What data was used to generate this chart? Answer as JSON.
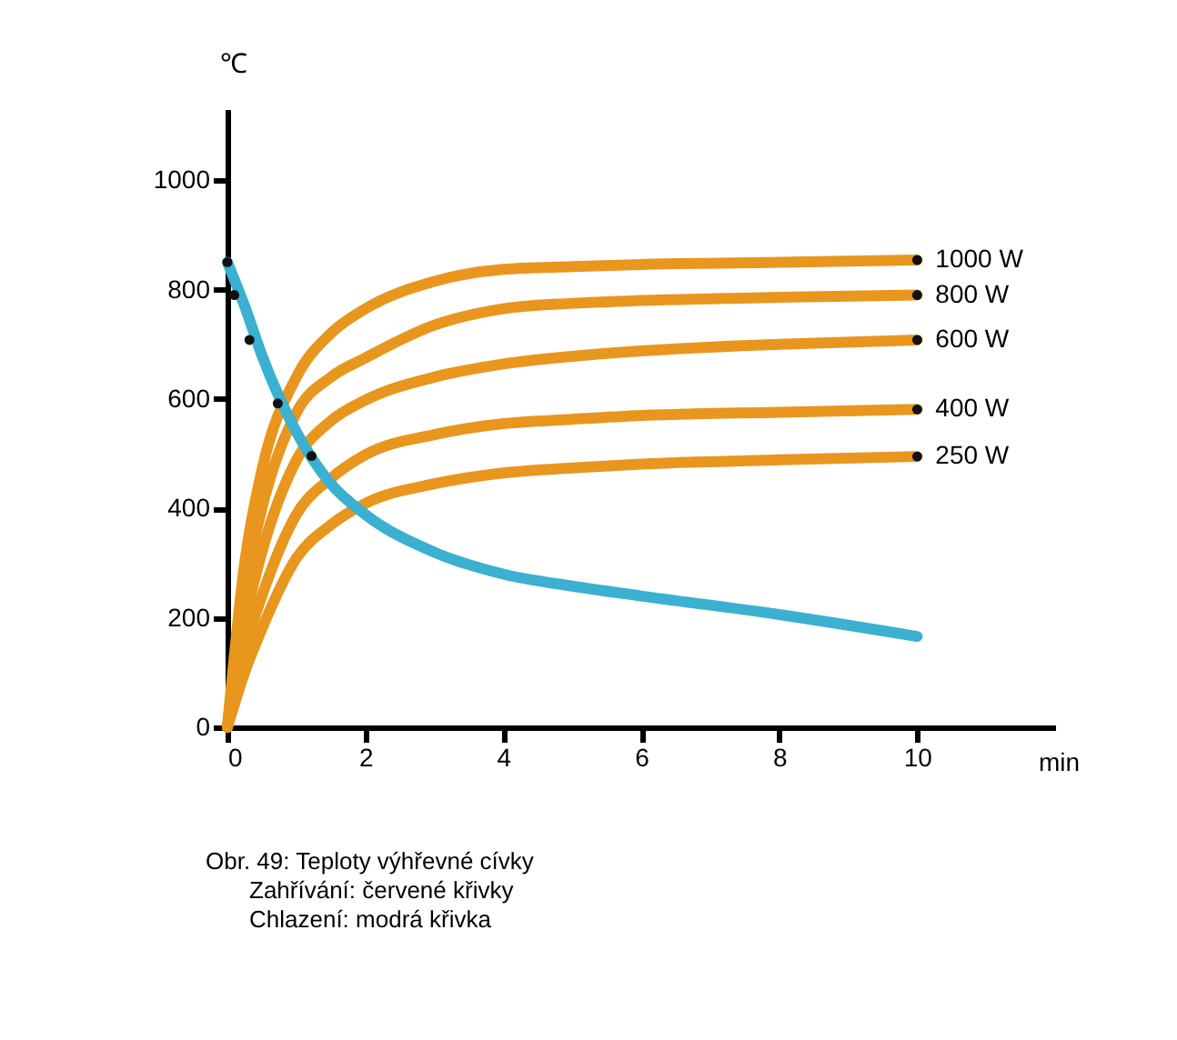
{
  "chart_data": {
    "type": "line",
    "xlabel": "min",
    "ylabel": "℃",
    "x": [
      0,
      0.25,
      0.5,
      1,
      1.5,
      2,
      3,
      4,
      5,
      6,
      8,
      10
    ],
    "series": [
      {
        "name": "1000 W",
        "color": "#e8961e",
        "values": [
          0,
          300,
          470,
          640,
          720,
          765,
          815,
          837,
          842,
          846,
          850,
          854
        ]
      },
      {
        "name": "800 W",
        "color": "#e8961e",
        "values": [
          0,
          250,
          400,
          575,
          640,
          675,
          735,
          765,
          775,
          780,
          786,
          790
        ]
      },
      {
        "name": "600 W",
        "color": "#e8961e",
        "values": [
          0,
          190,
          320,
          488,
          560,
          598,
          640,
          664,
          678,
          688,
          700,
          708
        ]
      },
      {
        "name": "400 W",
        "color": "#e8961e",
        "values": [
          0,
          140,
          240,
          389,
          455,
          498,
          535,
          555,
          563,
          570,
          576,
          581
        ]
      },
      {
        "name": "250 W",
        "color": "#e8961e",
        "values": [
          0,
          100,
          180,
          309,
          370,
          409,
          445,
          465,
          474,
          481,
          489,
          495
        ]
      },
      {
        "color": "#3cb0d0",
        "values": [
          850,
          770,
          680,
          540,
          445,
          389,
          320,
          280,
          258,
          240,
          206,
          166
        ]
      },
      {
        "type": "scatter",
        "marker": "circle",
        "color": "#111111",
        "x": [
          0,
          0.1,
          0.32,
          0.73,
          1.22,
          10,
          10,
          10,
          10,
          10
        ],
        "values": [
          850,
          790,
          708,
          592,
          496,
          854,
          790,
          708,
          581,
          495
        ]
      }
    ],
    "xlim": [
      0,
      12
    ],
    "ylim": [
      0,
      1130
    ],
    "xticks": [
      0,
      2,
      4,
      6,
      8,
      10
    ],
    "yticks": [
      0,
      200,
      400,
      600,
      800,
      1000
    ],
    "grid": false,
    "marker": "none",
    "annotations": [
      "Obr. 49: Teploty výhřevné cívky",
      "Zahřívání: červené křivky",
      "Chlazení: modrá křivka"
    ]
  }
}
